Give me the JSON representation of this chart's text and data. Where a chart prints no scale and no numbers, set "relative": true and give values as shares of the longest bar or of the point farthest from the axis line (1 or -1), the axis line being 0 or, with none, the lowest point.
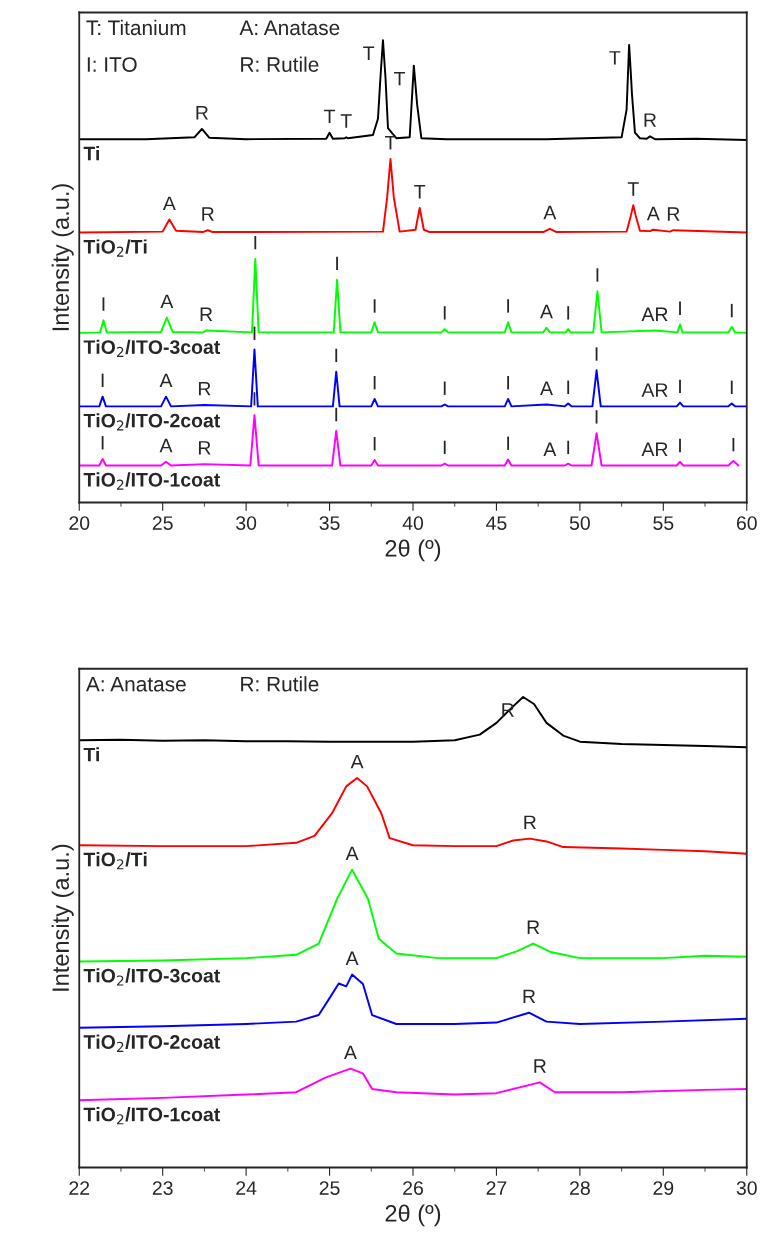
{
  "chart_data": [
    {
      "type": "line",
      "relative": true,
      "xlabel": "2θ (º)",
      "ylabel": "Intensity (a.u.)",
      "xlim": [
        20,
        60
      ],
      "xticks": [
        20,
        25,
        30,
        35,
        40,
        45,
        50,
        55,
        60
      ],
      "legend": false,
      "grid": false,
      "series": [
        {
          "name": "Ti",
          "color": "#000000",
          "x": [
            20,
            24,
            26.9,
            27.35,
            27.8,
            30,
            34.8,
            35.0,
            35.2,
            35.9,
            36.0,
            36.1,
            37.6,
            37.9,
            38.05,
            38.2,
            38.35,
            38.5,
            39.0,
            39.8,
            40.05,
            40.25,
            40.5,
            42,
            48,
            52.5,
            52.8,
            52.95,
            53.05,
            53.12,
            53.3,
            53.6,
            54.0,
            54.2,
            54.5,
            57,
            60
          ],
          "values": [
            0.786,
            0.786,
            0.79,
            0.808,
            0.789,
            0.786,
            0.787,
            0.8,
            0.787,
            0.788,
            0.79,
            0.788,
            0.795,
            0.83,
            0.92,
            1.0,
            0.92,
            0.81,
            0.788,
            0.79,
            0.945,
            0.86,
            0.788,
            0.786,
            0.786,
            0.79,
            0.85,
            0.99,
            0.93,
            0.884,
            0.8,
            0.788,
            0.787,
            0.792,
            0.786,
            0.787,
            0.784
          ]
        },
        {
          "name": "TiO$_{2}$/Ti",
          "color": "#ff0000",
          "x": [
            20,
            25.0,
            25.4,
            25.8,
            27.4,
            27.7,
            28.0,
            38.2,
            38.45,
            38.65,
            38.85,
            39.2,
            40.15,
            40.4,
            40.65,
            41,
            47.8,
            48.2,
            48.6,
            52.8,
            53.05,
            53.2,
            53.35,
            53.6,
            54.2,
            54.4,
            55.4,
            55.6,
            60
          ],
          "values": [
            0.584,
            0.586,
            0.612,
            0.588,
            0.585,
            0.589,
            0.585,
            0.586,
            0.66,
            0.743,
            0.66,
            0.586,
            0.59,
            0.637,
            0.59,
            0.585,
            0.585,
            0.592,
            0.585,
            0.586,
            0.62,
            0.643,
            0.62,
            0.588,
            0.587,
            0.59,
            0.586,
            0.589,
            0.584
          ]
        },
        {
          "name": "TiO$_{2}$/ITO-3coat",
          "color": "#00ff00",
          "x": [
            20,
            21.25,
            21.45,
            21.65,
            24.9,
            25.25,
            25.6,
            27.4,
            27.6,
            30.35,
            30.55,
            30.75,
            35.25,
            35.45,
            35.65,
            37.5,
            37.7,
            37.9,
            41.7,
            41.9,
            42.1,
            45.5,
            45.7,
            45.9,
            47.8,
            48.0,
            48.2,
            49.15,
            49.3,
            49.45,
            50.8,
            51.05,
            51.3,
            54.5,
            55.85,
            56.0,
            56.15,
            58.9,
            59.1,
            59.3,
            60
          ],
          "values": [
            0.367,
            0.368,
            0.394,
            0.368,
            0.369,
            0.4,
            0.369,
            0.368,
            0.372,
            0.368,
            0.527,
            0.368,
            0.368,
            0.482,
            0.368,
            0.368,
            0.39,
            0.368,
            0.368,
            0.375,
            0.368,
            0.368,
            0.39,
            0.368,
            0.368,
            0.378,
            0.368,
            0.368,
            0.375,
            0.368,
            0.368,
            0.457,
            0.368,
            0.372,
            0.368,
            0.385,
            0.368,
            0.368,
            0.38,
            0.368,
            0.367
          ]
        },
        {
          "name": "TiO$_{2}$/ITO-2coat",
          "color": "#0000ff",
          "x": [
            20,
            21.2,
            21.4,
            21.6,
            24.9,
            25.2,
            25.5,
            27.5,
            30.3,
            30.5,
            30.7,
            35.2,
            35.4,
            35.6,
            37.5,
            37.7,
            37.9,
            41.7,
            41.9,
            42.1,
            45.5,
            45.7,
            45.9,
            48.0,
            49.1,
            49.3,
            49.5,
            50.75,
            51.0,
            51.25,
            55.8,
            56.0,
            56.2,
            58.9,
            59.1,
            59.3,
            60
          ],
          "values": [
            0.208,
            0.208,
            0.229,
            0.208,
            0.208,
            0.229,
            0.208,
            0.211,
            0.208,
            0.331,
            0.208,
            0.208,
            0.283,
            0.208,
            0.208,
            0.224,
            0.208,
            0.208,
            0.212,
            0.208,
            0.208,
            0.224,
            0.208,
            0.212,
            0.208,
            0.214,
            0.208,
            0.208,
            0.286,
            0.208,
            0.208,
            0.216,
            0.208,
            0.208,
            0.214,
            0.208,
            0.208
          ]
        },
        {
          "name": "TiO$_{2}$/ITO-1coat",
          "color": "#ff00ff",
          "x": [
            20,
            21.2,
            21.4,
            21.6,
            24.9,
            25.2,
            25.5,
            27.5,
            30.25,
            30.5,
            30.75,
            35.15,
            35.4,
            35.65,
            37.5,
            37.7,
            37.9,
            41.7,
            41.9,
            42.1,
            45.5,
            45.7,
            45.9,
            49.1,
            49.3,
            49.5,
            50.7,
            51.0,
            51.3,
            55.8,
            56.0,
            56.2,
            58.9,
            59.2,
            59.5
          ],
          "values": [
            0.08,
            0.08,
            0.094,
            0.08,
            0.08,
            0.088,
            0.08,
            0.083,
            0.08,
            0.189,
            0.08,
            0.08,
            0.155,
            0.08,
            0.08,
            0.092,
            0.08,
            0.08,
            0.084,
            0.08,
            0.08,
            0.093,
            0.08,
            0.08,
            0.084,
            0.08,
            0.08,
            0.15,
            0.08,
            0.08,
            0.088,
            0.08,
            0.08,
            0.09,
            0.08
          ]
        }
      ],
      "annotations": [
        "T: Titanium",
        "A: Anatase",
        "I: ITO",
        "R: Rutile",
        {
          "text": "T",
          "x": 38.2,
          "y": 1.0
        },
        {
          "text": "T",
          "x": 40.05,
          "y": 0.945
        },
        {
          "text": "R",
          "x": 27.35,
          "y": 0.808
        },
        {
          "text": "T",
          "x": 35.0,
          "y": 0.8
        },
        {
          "text": "T",
          "x": 36.0,
          "y": 0.79
        },
        {
          "text": "T",
          "x": 52.95,
          "y": 0.99
        },
        {
          "text": "R",
          "x": 54.2,
          "y": 0.792
        },
        {
          "text": "T",
          "x": 38.65,
          "y": 0.743
        },
        {
          "text": "T",
          "x": 40.4,
          "y": 0.637
        },
        {
          "text": "A",
          "x": 25.4,
          "y": 0.612
        },
        {
          "text": "R",
          "x": 27.7,
          "y": 0.589
        },
        {
          "text": "A",
          "x": 48.2,
          "y": 0.592
        },
        {
          "text": "T",
          "x": 53.2,
          "y": 0.643
        },
        {
          "text": "A",
          "x": 54.4,
          "y": 0.59
        },
        {
          "text": "R",
          "x": 55.6,
          "y": 0.589
        },
        {
          "text": "I",
          "x": 21.45,
          "y": 0.394
        },
        {
          "text": "A",
          "x": 25.25,
          "y": 0.4
        },
        {
          "text": "R",
          "x": 27.6,
          "y": 0.372
        },
        {
          "text": "I",
          "x": 30.55,
          "y": 0.527
        },
        {
          "text": "I",
          "x": 35.45,
          "y": 0.482
        },
        {
          "text": "I",
          "x": 37.7,
          "y": 0.39
        },
        {
          "text": "I",
          "x": 41.9,
          "y": 0.375
        },
        {
          "text": "I",
          "x": 45.7,
          "y": 0.39
        },
        {
          "text": "A",
          "x": 48.0,
          "y": 0.378
        },
        {
          "text": "I",
          "x": 49.3,
          "y": 0.375
        },
        {
          "text": "I",
          "x": 51.05,
          "y": 0.457
        },
        {
          "text": "AR",
          "x": 54.5,
          "y": 0.372
        },
        {
          "text": "I",
          "x": 56.0,
          "y": 0.385
        },
        {
          "text": "I",
          "x": 59.1,
          "y": 0.38
        },
        {
          "text": "I",
          "x": 21.4,
          "y": 0.229
        },
        {
          "text": "A",
          "x": 25.2,
          "y": 0.229
        },
        {
          "text": "R",
          "x": 27.5,
          "y": 0.211
        },
        {
          "text": "I",
          "x": 30.5,
          "y": 0.331
        },
        {
          "text": "I",
          "x": 35.4,
          "y": 0.283
        },
        {
          "text": "I",
          "x": 37.7,
          "y": 0.224
        },
        {
          "text": "I",
          "x": 41.9,
          "y": 0.212
        },
        {
          "text": "I",
          "x": 45.7,
          "y": 0.224
        },
        {
          "text": "A",
          "x": 48.0,
          "y": 0.212
        },
        {
          "text": "I",
          "x": 49.3,
          "y": 0.214
        },
        {
          "text": "I",
          "x": 51.0,
          "y": 0.286
        },
        {
          "text": "AR",
          "x": 54.5,
          "y": 0.208
        },
        {
          "text": "I",
          "x": 56.0,
          "y": 0.216
        },
        {
          "text": "I",
          "x": 59.1,
          "y": 0.214
        },
        {
          "text": "I",
          "x": 21.4,
          "y": 0.094
        },
        {
          "text": "A",
          "x": 25.2,
          "y": 0.088
        },
        {
          "text": "R",
          "x": 27.5,
          "y": 0.083
        },
        {
          "text": "I",
          "x": 30.5,
          "y": 0.189
        },
        {
          "text": "I",
          "x": 35.4,
          "y": 0.155
        },
        {
          "text": "I",
          "x": 37.7,
          "y": 0.092
        },
        {
          "text": "I",
          "x": 41.9,
          "y": 0.084
        },
        {
          "text": "I",
          "x": 45.7,
          "y": 0.093
        },
        {
          "text": "A",
          "x": 48.2,
          "y": 0.08
        },
        {
          "text": "I",
          "x": 49.3,
          "y": 0.084
        },
        {
          "text": "I",
          "x": 51.0,
          "y": 0.15
        },
        {
          "text": "AR",
          "x": 54.5,
          "y": 0.08
        },
        {
          "text": "I",
          "x": 56.0,
          "y": 0.088
        },
        {
          "text": "I",
          "x": 59.2,
          "y": 0.09
        }
      ]
    },
    {
      "type": "line",
      "relative": true,
      "xlabel": "2θ (º)",
      "ylabel": "Intensity (a.u.)",
      "xlim": [
        22,
        30
      ],
      "xticks": [
        22,
        23,
        24,
        25,
        26,
        27,
        28,
        29,
        30
      ],
      "legend": false,
      "grid": false,
      "series": [
        {
          "name": "Ti",
          "color": "#000000",
          "x": [
            22,
            22.5,
            23,
            23.5,
            24,
            24.5,
            25,
            25.5,
            26,
            26.5,
            26.8,
            27.0,
            27.2,
            27.32,
            27.45,
            27.6,
            27.8,
            28.0,
            28.5,
            29,
            29.5,
            30
          ],
          "values": [
            0.908,
            0.909,
            0.907,
            0.908,
            0.906,
            0.906,
            0.905,
            0.905,
            0.905,
            0.908,
            0.92,
            0.945,
            0.98,
            1.0,
            0.985,
            0.945,
            0.918,
            0.905,
            0.9,
            0.898,
            0.896,
            0.893
          ]
        },
        {
          "name": "TiO$_{2}$/Ti",
          "color": "#ff0000",
          "x": [
            22,
            23,
            24,
            24.6,
            24.82,
            25.03,
            25.2,
            25.33,
            25.45,
            25.62,
            25.72,
            26,
            26.5,
            27,
            27.2,
            27.4,
            27.6,
            27.8,
            28.5,
            29,
            29.5,
            30
          ],
          "values": [
            0.685,
            0.683,
            0.683,
            0.69,
            0.705,
            0.753,
            0.81,
            0.828,
            0.81,
            0.753,
            0.7,
            0.685,
            0.683,
            0.683,
            0.695,
            0.699,
            0.693,
            0.681,
            0.678,
            0.675,
            0.672,
            0.667
          ]
        },
        {
          "name": "TiO$_{2}$/ITO-3coat",
          "color": "#00ff00",
          "x": [
            22,
            23,
            24,
            24.6,
            24.87,
            25.09,
            25.27,
            25.46,
            25.59,
            25.8,
            26.3,
            27,
            27.25,
            27.44,
            27.65,
            28,
            29,
            29.5,
            30
          ],
          "values": [
            0.438,
            0.44,
            0.445,
            0.452,
            0.476,
            0.571,
            0.633,
            0.571,
            0.486,
            0.455,
            0.445,
            0.445,
            0.46,
            0.476,
            0.458,
            0.445,
            0.445,
            0.45,
            0.448
          ]
        },
        {
          "name": "TiO$_{2}$/ITO-2coat",
          "color": "#0000ff",
          "x": [
            22,
            23,
            24,
            24.6,
            24.87,
            25.0,
            25.11,
            25.2,
            25.27,
            25.4,
            25.51,
            25.8,
            26.5,
            27.0,
            27.39,
            27.6,
            28,
            29,
            30
          ],
          "values": [
            0.297,
            0.3,
            0.305,
            0.31,
            0.324,
            0.36,
            0.391,
            0.385,
            0.41,
            0.39,
            0.324,
            0.305,
            0.305,
            0.308,
            0.329,
            0.31,
            0.305,
            0.31,
            0.316
          ]
        },
        {
          "name": "TiO$_{2}$/ITO-1coat",
          "color": "#ff00ff",
          "x": [
            22,
            23,
            24,
            24.6,
            24.95,
            25.25,
            25.4,
            25.51,
            25.8,
            26.5,
            27,
            27.52,
            27.7,
            28.5,
            29.5,
            30
          ],
          "values": [
            0.143,
            0.148,
            0.155,
            0.16,
            0.191,
            0.21,
            0.2,
            0.167,
            0.16,
            0.155,
            0.158,
            0.181,
            0.16,
            0.16,
            0.165,
            0.167
          ]
        }
      ],
      "annotations": [
        "A: Anatase",
        "R: Rutile",
        {
          "text": "R",
          "x": 27.32,
          "y": 1.0
        },
        {
          "text": "A",
          "x": 25.33,
          "y": 0.828
        },
        {
          "text": "R",
          "x": 27.4,
          "y": 0.699
        },
        {
          "text": "A",
          "x": 25.27,
          "y": 0.633
        },
        {
          "text": "R",
          "x": 27.44,
          "y": 0.476
        },
        {
          "text": "A",
          "x": 25.27,
          "y": 0.41
        },
        {
          "text": "R",
          "x": 27.39,
          "y": 0.329
        },
        {
          "text": "A",
          "x": 25.25,
          "y": 0.21
        },
        {
          "text": "R",
          "x": 27.52,
          "y": 0.181
        }
      ]
    }
  ]
}
